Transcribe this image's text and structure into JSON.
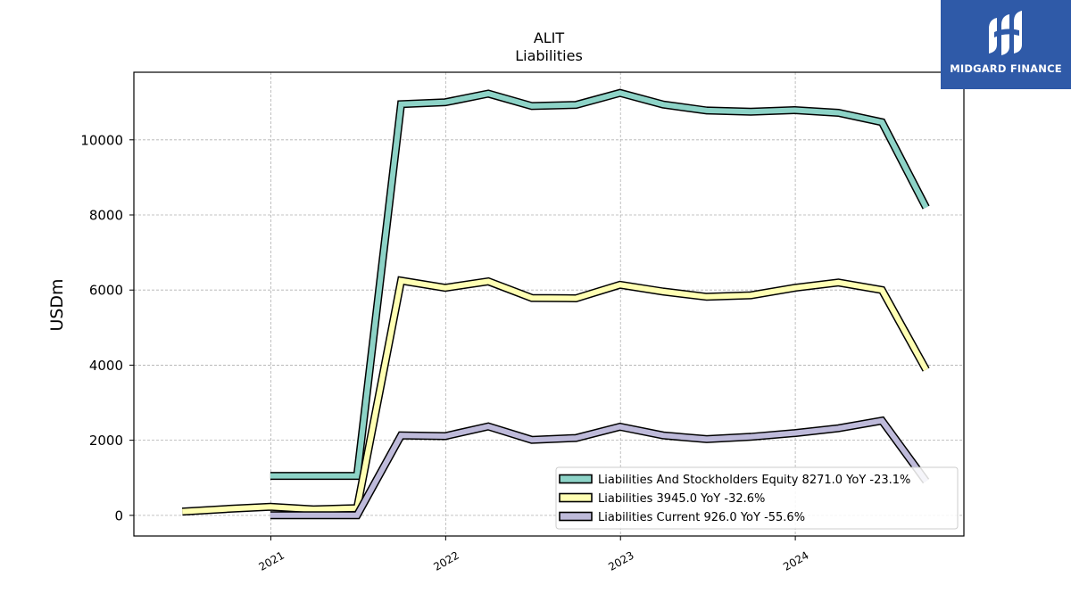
{
  "chart_data": {
    "type": "line",
    "title": "ALIT",
    "subtitle": "Liabilities",
    "ylabel": "USDm",
    "xlabel": "",
    "ylim": [
      -550,
      11800
    ],
    "xlim": [
      "2020-03-21",
      "2024-12-18"
    ],
    "yticks": [
      0,
      2000,
      4000,
      6000,
      8000,
      10000
    ],
    "xticks": [
      {
        "date": "2021-01-01",
        "label": "2021"
      },
      {
        "date": "2022-01-01",
        "label": "2022"
      },
      {
        "date": "2023-01-01",
        "label": "2023"
      },
      {
        "date": "2024-01-01",
        "label": "2024"
      }
    ],
    "grid": true,
    "legend_position": "bottom-right",
    "series": [
      {
        "name": "Liabilities And Stockholders Equity",
        "legend": "Liabilities And Stockholders Equity  8271.0 YoY -23.1%",
        "color": "#8dd3c7",
        "points": [
          [
            "2020-12-31",
            1050
          ],
          [
            "2021-06-30",
            1050
          ],
          [
            "2021-09-30",
            10950
          ],
          [
            "2021-12-31",
            11000
          ],
          [
            "2022-03-31",
            11230
          ],
          [
            "2022-06-30",
            10900
          ],
          [
            "2022-09-30",
            10930
          ],
          [
            "2022-12-31",
            11250
          ],
          [
            "2023-03-31",
            10940
          ],
          [
            "2023-06-30",
            10780
          ],
          [
            "2023-09-30",
            10750
          ],
          [
            "2023-12-31",
            10790
          ],
          [
            "2024-03-31",
            10720
          ],
          [
            "2024-06-30",
            10470
          ],
          [
            "2024-09-30",
            8200
          ]
        ]
      },
      {
        "name": "Liabilities",
        "legend": "Liabilities  3945.0 YoY -32.6%",
        "color": "#ffffb3",
        "points": [
          [
            "2020-06-30",
            100
          ],
          [
            "2020-09-30",
            170
          ],
          [
            "2020-12-31",
            230
          ],
          [
            "2021-03-31",
            160
          ],
          [
            "2021-06-30",
            190
          ],
          [
            "2021-09-30",
            6250
          ],
          [
            "2021-12-31",
            6060
          ],
          [
            "2022-03-31",
            6230
          ],
          [
            "2022-06-30",
            5790
          ],
          [
            "2022-09-30",
            5780
          ],
          [
            "2022-12-31",
            6140
          ],
          [
            "2023-03-31",
            5960
          ],
          [
            "2023-06-30",
            5820
          ],
          [
            "2023-09-30",
            5860
          ],
          [
            "2023-12-31",
            6060
          ],
          [
            "2024-03-31",
            6200
          ],
          [
            "2024-06-30",
            6000
          ],
          [
            "2024-09-30",
            3880
          ]
        ]
      },
      {
        "name": "Liabilities Current",
        "legend": "Liabilities Current  926.0 YoY -55.6%",
        "color": "#bebada",
        "points": [
          [
            "2020-12-31",
            0
          ],
          [
            "2021-06-30",
            0
          ],
          [
            "2021-09-30",
            2130
          ],
          [
            "2021-12-31",
            2110
          ],
          [
            "2022-03-31",
            2370
          ],
          [
            "2022-06-30",
            2010
          ],
          [
            "2022-09-30",
            2060
          ],
          [
            "2022-12-31",
            2360
          ],
          [
            "2023-03-31",
            2130
          ],
          [
            "2023-06-30",
            2030
          ],
          [
            "2023-09-30",
            2090
          ],
          [
            "2023-12-31",
            2190
          ],
          [
            "2024-03-31",
            2320
          ],
          [
            "2024-06-30",
            2520
          ],
          [
            "2024-09-30",
            910
          ]
        ]
      }
    ]
  },
  "logo": {
    "text": "MIDGARD FINANCE",
    "color": "#2f5aa8"
  }
}
